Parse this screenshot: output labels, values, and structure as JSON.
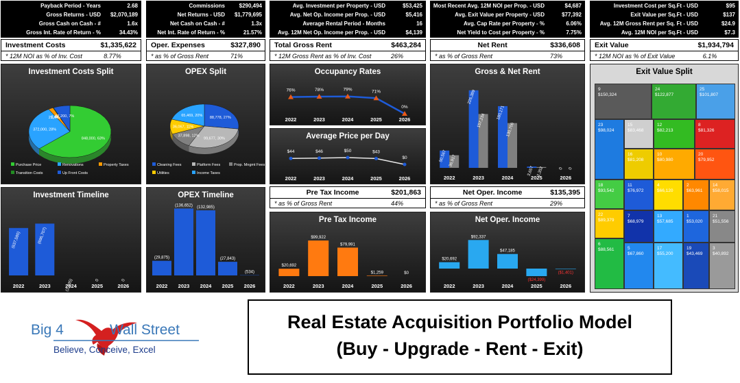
{
  "kpi_boxes": [
    {
      "rows": [
        {
          "label": "Payback Period - Years",
          "value": "2.68"
        },
        {
          "label": "Gross Returns - USD",
          "value": "$2,070,189"
        },
        {
          "label": "Gross Cash on Cash - #",
          "value": "1.6x"
        },
        {
          "label": "Gross Int. Rate of Return - %",
          "value": "34.43%"
        }
      ]
    },
    {
      "rows": [
        {
          "label": "Commissions",
          "value": "$290,494"
        },
        {
          "label": "Net Returns - USD",
          "value": "$1,779,695"
        },
        {
          "label": "Net Cash on Cash - #",
          "value": "1.3x"
        },
        {
          "label": "Net Int. Rate of Return - %",
          "value": "21.57%"
        }
      ]
    },
    {
      "rows": [
        {
          "label": "Avg. Investment per Property - USD",
          "value": "$53,425"
        },
        {
          "label": "Avg. Net Op. Income per Prop. - USD",
          "value": "$5,416"
        },
        {
          "label": "Average Rental Period - Months",
          "value": "16"
        },
        {
          "label": "Avg. 12M Net Op. Income per Prop. - USD",
          "value": "$4,139"
        }
      ]
    },
    {
      "rows": [
        {
          "label": "Most Recent Avg. 12M NOI per Prop. - USD",
          "value": "$4,687"
        },
        {
          "label": "Avg. Exit Value per Property - USD",
          "value": "$77,392"
        },
        {
          "label": "Avg. Cap Rate per Property - %",
          "value": "6.06%"
        },
        {
          "label": "Net Yield to Cost per Property - %",
          "value": "7.75%"
        }
      ]
    },
    {
      "rows": [
        {
          "label": "Investment Cost per Sq.Ft - USD",
          "value": "$95"
        },
        {
          "label": "Exit Value per Sq.Ft - USD",
          "value": "$137"
        },
        {
          "label": "Avg. 12M Gross Rent per Sq. Ft - USD",
          "value": "$24.9"
        },
        {
          "label": "Avg. 12M NOI per Sq.Ft - USD",
          "value": "$7.3"
        }
      ]
    }
  ],
  "summary": {
    "investment_costs": {
      "title": "Investment Costs",
      "value": "$1,335,622",
      "sub": "* 12M NOI as % of Inv. Cost",
      "sub_value": "8.77%"
    },
    "oper_expenses": {
      "title": "Oper. Expenses",
      "value": "$327,890",
      "sub": "* as % of Gross Rent",
      "sub_value": "71%"
    },
    "total_gross_rent": {
      "title": "Total Gross Rent",
      "value": "$463,284",
      "sub": "* 12M Gross Rent as % of Inv. Cost",
      "sub_value": "26%"
    },
    "net_rent": {
      "title": "Net Rent",
      "value": "$336,608",
      "sub": "* as % of Gross Rent",
      "sub_value": "73%"
    },
    "exit_value": {
      "title": "Exit Value",
      "value": "$1,934,794",
      "sub": "* 12M NOI as % of Exit Value",
      "sub_value": "6.1%"
    },
    "pre_tax_income": {
      "title": "Pre Tax Income",
      "value": "$201,863",
      "sub": "* as % of Gross Rent",
      "sub_value": "44%"
    },
    "net_oper_income": {
      "title": "Net Oper. Income",
      "value": "$135,395",
      "sub": "* as % of Gross Rent",
      "sub_value": "29%"
    }
  },
  "chart_data": [
    {
      "id": "investment_costs_split",
      "type": "pie",
      "title": "Investment Costs Split",
      "slices": [
        {
          "name": "Purchase Price",
          "value": 848000,
          "label": "848,000, 63%",
          "color": "#33cc33"
        },
        {
          "name": "Renovations",
          "value": 372000,
          "label": "372,000, 28%",
          "color": "#29a3ff"
        },
        {
          "name": "Property Taxes",
          "value": 25440,
          "label": "25,440, 2%",
          "color": "#ff9900"
        },
        {
          "name": "Transition Costs",
          "value": 2982,
          "label": "2,982, 0%",
          "color": "#228b22"
        },
        {
          "name": "Up Front Costs",
          "value": 87200,
          "label": "87,200, 7%",
          "color": "#1e5bd8"
        }
      ]
    },
    {
      "id": "opex_split",
      "type": "pie",
      "title": "OPEX Split",
      "slices": [
        {
          "name": "Cleaning Fees",
          "value": 88778,
          "label": "88,778, 27%",
          "color": "#1e5bd8"
        },
        {
          "name": "Platform Fees",
          "value": 99677,
          "label": "99,677, 30%",
          "color": "#b8b8b8"
        },
        {
          "name": "Prop. Mngmt Fees",
          "value": 37898,
          "label": "37,898, 12%",
          "color": "#808080"
        },
        {
          "name": "Utilities",
          "value": 36067,
          "label": "36,067, 11%",
          "color": "#ffcc00"
        },
        {
          "name": "Income Taxes",
          "value": 65469,
          "label": "65,469, 20%",
          "color": "#29a3ff"
        }
      ]
    },
    {
      "id": "occupancy_rates",
      "type": "line",
      "title": "Occupancy Rates",
      "x": [
        "2022",
        "2023",
        "2024",
        "2025",
        "2026"
      ],
      "values": [
        76,
        78,
        79,
        71,
        0
      ],
      "labels": [
        "76%",
        "78%",
        "79%",
        "71%",
        "0%"
      ]
    },
    {
      "id": "average_price_per_day",
      "type": "line",
      "title": "Average Price per Day",
      "x": [
        "2022",
        "2023",
        "2024",
        "2025",
        "2026"
      ],
      "values": [
        44,
        46,
        50,
        43,
        0
      ],
      "labels": [
        "$44",
        "$46",
        "$50",
        "$43",
        "$0"
      ]
    },
    {
      "id": "gross_net_rent",
      "type": "bar",
      "title": "Gross & Net Rent",
      "x": [
        "2022",
        "2023",
        "2024",
        "2025",
        "2026"
      ],
      "series": [
        {
          "values": [
            50567,
            226389,
            180171,
            3657,
            0
          ],
          "labels": [
            "50,567",
            "226,389",
            "180,171",
            "3,657",
            "0"
          ],
          "color": "#1e5bd8"
        },
        {
          "values": [
            36917,
            157234,
            130706,
            2352,
            0
          ],
          "labels": [
            "36,917",
            "157,234",
            "130,706",
            "2,352",
            "0"
          ],
          "color": "#808080"
        }
      ]
    },
    {
      "id": "investment_timeline",
      "type": "bar",
      "title": "Investment Timeline",
      "x": [
        "2022",
        "2023",
        "2024",
        "2025",
        "2026"
      ],
      "values": [
        -637580,
        -696707,
        -1335,
        0,
        0
      ],
      "labels": [
        "(637,580)",
        "(696,707)",
        "(1,335)",
        "0",
        "0"
      ]
    },
    {
      "id": "opex_timeline",
      "type": "bar",
      "title": "OPEX Timeline",
      "x": [
        "2022",
        "2023",
        "2024",
        "2025",
        "2026"
      ],
      "values": [
        -29875,
        -136652,
        -132985,
        -27843,
        -534
      ],
      "labels": [
        "(29,875)",
        "(136,652)",
        "(132,985)",
        "(27,843)",
        "(534)"
      ]
    },
    {
      "id": "pre_tax_income",
      "type": "bar",
      "title": "Pre Tax Income",
      "x": [
        "2022",
        "2023",
        "2024",
        "2025",
        "2026"
      ],
      "values": [
        20692,
        99922,
        79991,
        1259,
        0
      ],
      "labels": [
        "$20,692",
        "$99,922",
        "$79,991",
        "$1,259",
        "$0"
      ]
    },
    {
      "id": "net_oper_income",
      "type": "bar",
      "title": "Net Oper. Income",
      "x": [
        "2022",
        "2023",
        "2024",
        "2025",
        "2026"
      ],
      "values": [
        20692,
        92337,
        47185,
        -24399,
        -1401
      ],
      "labels": [
        "$20,692",
        "$92,337",
        "$47,185",
        "($24,399)",
        "($1,401)"
      ]
    },
    {
      "id": "exit_value_split",
      "type": "heatmap",
      "title": "Exit Value Split",
      "cells": [
        {
          "id": "9",
          "value": "$150,324",
          "color": "#5a5a5a"
        },
        {
          "id": "24",
          "value": "$122,877",
          "color": "#33aa33"
        },
        {
          "id": "25",
          "value": "$101,807",
          "color": "#4aa0e8"
        },
        {
          "id": "23",
          "value": "$98,024",
          "color": "#1e7be0"
        },
        {
          "id": "15",
          "value": "$83,468",
          "color": "#cfcfcf"
        },
        {
          "id": "12",
          "value": "$82,213",
          "color": "#33bb22"
        },
        {
          "id": "8",
          "value": "$81,326",
          "color": "#dd2222"
        },
        {
          "id": "16",
          "value": "$81,208",
          "color": "#eecc00"
        },
        {
          "id": "10",
          "value": "$80,980",
          "color": "#ffaa00"
        },
        {
          "id": "20",
          "value": "$79,952",
          "color": "#ff5511"
        },
        {
          "id": "18",
          "value": "$93,542",
          "color": "#44cc44"
        },
        {
          "id": "11",
          "value": "$76,972",
          "color": "#1e5bd8"
        },
        {
          "id": "4",
          "value": "$66,120",
          "color": "#ffdd00"
        },
        {
          "id": "2",
          "value": "$63,961",
          "color": "#ff8800"
        },
        {
          "id": "14",
          "value": "$58,015",
          "color": "#ffaa33"
        },
        {
          "id": "22",
          "value": "$89,379",
          "color": "#ffcc00"
        },
        {
          "id": "7",
          "value": "$68,979",
          "color": "#1133aa"
        },
        {
          "id": "13",
          "value": "$57,685",
          "color": "#33aaff"
        },
        {
          "id": "1",
          "value": "$53,020",
          "color": "#1e66dd"
        },
        {
          "id": "21",
          "value": "$51,556",
          "color": "#888888"
        },
        {
          "id": "6",
          "value": "$88,561",
          "color": "#22bb44"
        },
        {
          "id": "5",
          "value": "$67,860",
          "color": "#2288ee"
        },
        {
          "id": "17",
          "value": "$55,200",
          "color": "#44bbff"
        },
        {
          "id": "19",
          "value": "$43,469",
          "color": "#1a4ab8"
        },
        {
          "id": "3",
          "value": "$40,892",
          "color": "#9a9a9a"
        }
      ]
    }
  ],
  "logo": {
    "brand_left": "Big 4",
    "brand_right": "Wall Street",
    "tagline": "Believe, Conceive, Excel"
  },
  "title": {
    "line1": "Real Estate Acquisition Portfolio Model",
    "line2": "(Buy - Upgrade - Rent - Exit)"
  }
}
